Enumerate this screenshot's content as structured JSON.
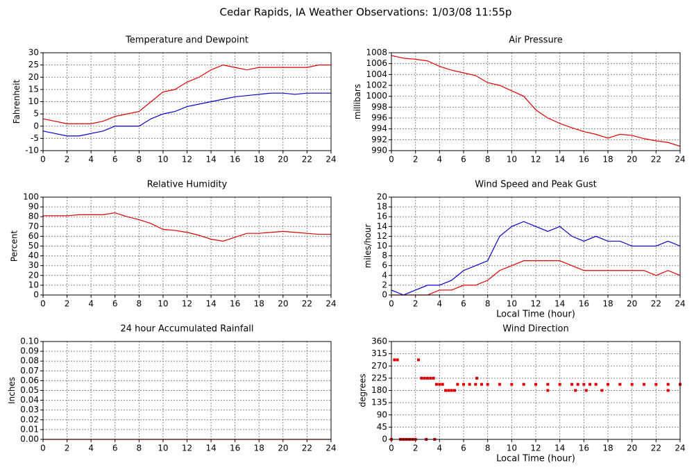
{
  "title": "Cedar Rapids, IA Weather Observations: 1/03/08 11:55p",
  "chart_data": [
    {
      "type": "line",
      "title": "Temperature and Dewpoint",
      "y_label": "Fahrenheit",
      "grid": true,
      "x": [
        0,
        1,
        2,
        3,
        4,
        5,
        6,
        7,
        8,
        9,
        10,
        11,
        12,
        13,
        14,
        15,
        16,
        17,
        18,
        19,
        20,
        21,
        22,
        23,
        24
      ],
      "series": [
        {
          "color": "#dd0000",
          "values": [
            3,
            2,
            1,
            1,
            1,
            2,
            4,
            5,
            6,
            10,
            14,
            15,
            18,
            20,
            23,
            25,
            24,
            23,
            24,
            24,
            24,
            24,
            24,
            25,
            25
          ]
        },
        {
          "color": "#0000cc",
          "values": [
            -2,
            -3,
            -4,
            -4,
            -3,
            -2,
            0,
            0,
            0,
            3,
            5,
            6,
            8,
            9,
            10,
            11,
            12,
            12.5,
            13,
            13.5,
            13.5,
            13,
            13.5,
            13.5,
            13.5
          ]
        }
      ],
      "xlim": [
        0,
        24
      ],
      "xticks": [
        0,
        2,
        4,
        6,
        8,
        10,
        12,
        14,
        16,
        18,
        20,
        22,
        24
      ],
      "ylim": [
        -10,
        30
      ],
      "yticks": [
        -10,
        -5,
        0,
        5,
        10,
        15,
        20,
        25,
        30
      ]
    },
    {
      "type": "line",
      "title": "Air Pressure",
      "y_label": "millibars",
      "grid": true,
      "x": [
        0,
        1,
        2,
        3,
        4,
        5,
        6,
        7,
        8,
        9,
        10,
        11,
        12,
        13,
        14,
        15,
        16,
        17,
        18,
        19,
        20,
        21,
        22,
        23,
        24
      ],
      "series": [
        {
          "color": "#dd0000",
          "values": [
            1007.5,
            1007,
            1006.8,
            1006.5,
            1005.5,
            1004.8,
            1004.3,
            1003.8,
            1002.5,
            1002,
            1001,
            1000,
            997.5,
            996,
            995,
            994.2,
            993.5,
            993,
            992.3,
            993,
            992.8,
            992.2,
            991.8,
            991.5,
            990.8
          ]
        }
      ],
      "xlim": [
        0,
        24
      ],
      "xticks": [
        0,
        2,
        4,
        6,
        8,
        10,
        12,
        14,
        16,
        18,
        20,
        22,
        24
      ],
      "ylim": [
        990,
        1008
      ],
      "yticks": [
        990,
        992,
        994,
        996,
        998,
        1000,
        1002,
        1004,
        1006,
        1008
      ]
    },
    {
      "type": "line",
      "title": "Relative Humidity",
      "y_label": "Percent",
      "grid": true,
      "x": [
        0,
        1,
        2,
        3,
        4,
        5,
        6,
        7,
        8,
        9,
        10,
        11,
        12,
        13,
        14,
        15,
        16,
        17,
        18,
        19,
        20,
        21,
        22,
        23,
        24
      ],
      "series": [
        {
          "color": "#dd0000",
          "values": [
            81,
            81,
            81,
            82,
            82,
            82,
            84,
            80,
            77,
            73,
            67,
            66,
            64,
            61,
            57,
            55,
            59,
            63,
            63,
            64,
            65,
            64,
            63,
            62,
            62
          ]
        }
      ],
      "xlim": [
        0,
        24
      ],
      "xticks": [
        0,
        2,
        4,
        6,
        8,
        10,
        12,
        14,
        16,
        18,
        20,
        22,
        24
      ],
      "ylim": [
        0,
        100
      ],
      "yticks": [
        0,
        10,
        20,
        30,
        40,
        50,
        60,
        70,
        80,
        90,
        100
      ]
    },
    {
      "type": "line",
      "title": "Wind Speed and Peak Gust",
      "y_label": "miles/hour",
      "x_label": "Local Time (hour)",
      "grid": true,
      "x": [
        0,
        1,
        2,
        3,
        4,
        5,
        6,
        7,
        8,
        9,
        10,
        11,
        12,
        13,
        14,
        15,
        16,
        17,
        18,
        19,
        20,
        21,
        22,
        23,
        24
      ],
      "series": [
        {
          "color": "#0000cc",
          "values": [
            1,
            0,
            1,
            2,
            2,
            3,
            5,
            6,
            7,
            12,
            14,
            15,
            14,
            13,
            14,
            12,
            11,
            12,
            11,
            11,
            10,
            10,
            10,
            11,
            10
          ]
        },
        {
          "color": "#dd0000",
          "values": [
            0,
            0,
            0,
            0,
            1,
            1,
            2,
            2,
            3,
            5,
            6,
            7,
            7,
            7,
            7,
            6,
            5,
            5,
            5,
            5,
            5,
            5,
            4,
            5,
            4
          ]
        }
      ],
      "xlim": [
        0,
        24
      ],
      "xticks": [
        0,
        2,
        4,
        6,
        8,
        10,
        12,
        14,
        16,
        18,
        20,
        22,
        24
      ],
      "ylim": [
        0,
        20
      ],
      "yticks": [
        0,
        2,
        4,
        6,
        8,
        10,
        12,
        14,
        16,
        18,
        20
      ]
    },
    {
      "type": "line",
      "title": "24 hour Accumulated Rainfall",
      "y_label": "Inches",
      "grid": true,
      "x": [
        0,
        24
      ],
      "series": [
        {
          "color": "#dd0000",
          "values": [
            0,
            0
          ]
        }
      ],
      "xlim": [
        0,
        24
      ],
      "xticks": [
        0,
        2,
        4,
        6,
        8,
        10,
        12,
        14,
        16,
        18,
        20,
        22,
        24
      ],
      "ylim": [
        0,
        0.1
      ],
      "yticks": [
        {
          "value": 0,
          "label": "0.00"
        },
        {
          "value": 0.01,
          "label": "0.01"
        },
        {
          "value": 0.02,
          "label": "0.02"
        },
        {
          "value": 0.03,
          "label": "0.03"
        },
        {
          "value": 0.04,
          "label": "0.04"
        },
        {
          "value": 0.05,
          "label": "0.05"
        },
        {
          "value": 0.06,
          "label": "0.06"
        },
        {
          "value": 0.07,
          "label": "0.07"
        },
        {
          "value": 0.08,
          "label": "0.08"
        },
        {
          "value": 0.09,
          "label": "0.09"
        },
        {
          "value": 0.1,
          "label": "0.10"
        }
      ]
    },
    {
      "type": "scatter",
      "title": "Wind Direction",
      "y_label": "degrees",
      "x_label": "Local Time (hour)",
      "grid": true,
      "x": [
        0,
        0.25,
        0.5,
        0.75,
        1,
        1.25,
        1.5,
        1.75,
        2,
        2.25,
        2.5,
        2.75,
        3,
        3.25,
        3.5,
        3.75,
        4,
        4.25,
        4.5,
        4.75,
        5,
        5.25,
        5.5,
        6,
        6.5,
        7,
        7.5,
        8,
        9,
        10,
        11,
        12,
        13,
        14,
        15,
        15.5,
        16,
        16.5,
        17,
        18,
        19,
        20,
        21,
        22,
        23,
        24,
        7.1,
        13,
        15.3,
        16.2,
        17.5,
        23,
        2.9,
        3.6
      ],
      "series": [
        {
          "color": "#dd0000",
          "values": [
            0,
            292.5,
            292.5,
            0,
            0,
            0,
            0,
            0,
            0,
            292.5,
            225,
            225,
            225,
            225,
            225,
            202.5,
            202.5,
            202.5,
            180,
            180,
            180,
            180,
            202.5,
            202.5,
            202.5,
            202.5,
            202.5,
            202.5,
            202.5,
            202.5,
            202.5,
            202.5,
            202.5,
            202.5,
            202.5,
            202.5,
            202.5,
            202.5,
            202.5,
            202.5,
            202.5,
            202.5,
            202.5,
            202.5,
            202.5,
            202.5,
            225,
            180,
            180,
            180,
            180,
            180,
            0,
            0
          ]
        }
      ],
      "xlim": [
        0,
        24
      ],
      "xticks": [
        0,
        2,
        4,
        6,
        8,
        10,
        12,
        14,
        16,
        18,
        20,
        22,
        24
      ],
      "ylim": [
        0,
        360
      ],
      "yticks": [
        0,
        45,
        90,
        135,
        180,
        225,
        270,
        315,
        360
      ]
    }
  ]
}
